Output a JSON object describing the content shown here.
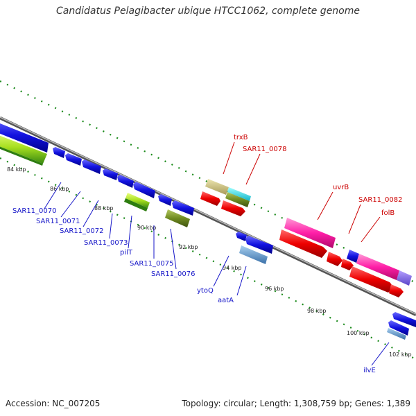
{
  "title": "Candidatus Pelagibacter ubique HTCC1062, complete genome",
  "footer": {
    "accession": "Accession: NC_007205",
    "info": "Topology: circular; Length: 1,308,759 bp; Genes: 1,389"
  },
  "colors": {
    "blue_label": "#1515c8",
    "red_label": "#cc0000",
    "ticks": "#1a8a1a",
    "backbone": "#888888"
  },
  "kbp_ticks": [
    "84 kbp",
    "86 kbp",
    "88 kbp",
    "90 kbp",
    "92 kbp",
    "94 kbp",
    "96 kbp",
    "98 kbp",
    "100 kbp",
    "102 kbp"
  ],
  "genes_forward": [
    "trxB",
    "SAR11_0078",
    "uvrB",
    "SAR11_0082",
    "folB"
  ],
  "genes_reverse": [
    "SAR11_0070",
    "SAR11_0071",
    "SAR11_0072",
    "SAR11_0073",
    "pilT",
    "SAR11_0075",
    "SAR11_0076",
    "ytoQ",
    "aatA",
    "ilvE"
  ]
}
